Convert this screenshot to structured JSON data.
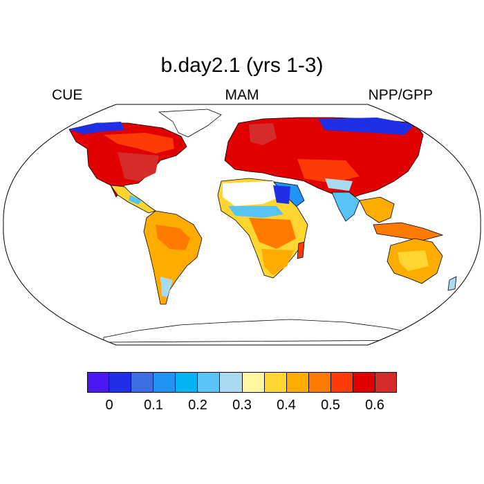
{
  "map": {
    "title": "b.day2.1 (yrs 1-3)",
    "left_label": "CUE",
    "center_label": "MAM",
    "right_label": "NPP/GPP",
    "projection": "Robinson",
    "colorbar": {
      "colors": [
        "#4b17f2",
        "#1f2fe6",
        "#3c6ee0",
        "#2193f5",
        "#03b4f5",
        "#57c4f5",
        "#aadaf2",
        "#fff7a0",
        "#ffd630",
        "#ffac00",
        "#ff7a00",
        "#ff3a05",
        "#e00000",
        "#d42b2b"
      ],
      "tick_labels": [
        "0",
        "0.1",
        "0.2",
        "0.3",
        "0.4",
        "0.5",
        "0.6"
      ]
    }
  }
}
